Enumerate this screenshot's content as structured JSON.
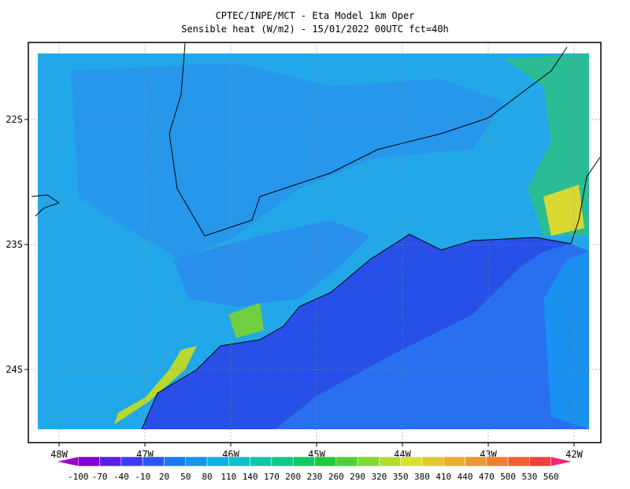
{
  "header": {
    "title": "CPTEC/INPE/MCT -  Eta Model 1km Oper",
    "subtitle": "Sensible heat (W/m2) - 15/01/2022 00UTC fct=40h"
  },
  "map": {
    "lon_ticks": [
      {
        "value": -48,
        "label": "48W"
      },
      {
        "value": -47,
        "label": "47W"
      },
      {
        "value": -46,
        "label": "46W"
      },
      {
        "value": -45,
        "label": "45W"
      },
      {
        "value": -44,
        "label": "44W"
      },
      {
        "value": -43,
        "label": "43W"
      },
      {
        "value": -42,
        "label": "42W"
      }
    ],
    "lat_ticks": [
      {
        "value": -22,
        "label": "22S"
      },
      {
        "value": -23,
        "label": "23S"
      },
      {
        "value": -24,
        "label": "24S"
      }
    ],
    "grid": true
  },
  "colorbar": {
    "levels": [
      -100,
      -70,
      -40,
      -10,
      20,
      50,
      80,
      110,
      140,
      170,
      200,
      230,
      260,
      290,
      320,
      350,
      380,
      410,
      440,
      470,
      500,
      530,
      560
    ],
    "colors": [
      "#a000c8",
      "#8000d8",
      "#5a1ee6",
      "#3c3cf0",
      "#2858f0",
      "#1a78f0",
      "#1096f0",
      "#10b0e0",
      "#10c0c8",
      "#10c8a8",
      "#10c888",
      "#10c868",
      "#20c840",
      "#50d030",
      "#80d830",
      "#b0dc30",
      "#d8e030",
      "#e0c830",
      "#e8b030",
      "#e89830",
      "#f08030",
      "#f06030",
      "#f04040",
      "#f02878"
    ]
  }
}
